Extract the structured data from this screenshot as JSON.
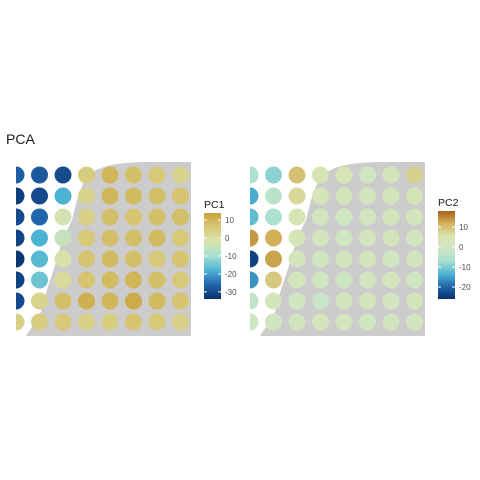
{
  "title": "PCA",
  "chart_data": [
    {
      "type": "heatmap",
      "legend_title": "PC1",
      "legend_ticks": [
        10,
        0,
        -10,
        -20,
        -30
      ],
      "value_range": [
        -34,
        14
      ],
      "colormap": [
        "#08306b",
        "#2166ac",
        "#4db3d2",
        "#a6dfd3",
        "#d9e4b0",
        "#d8c978",
        "#c9a13a"
      ],
      "tissue_background": "#cccccc",
      "rows": [
        [
          -27,
          -28,
          -30,
          5,
          10,
          8,
          6,
          3,
          4
        ],
        [
          -32,
          -30,
          -18,
          3,
          10,
          9,
          8,
          7,
          6
        ],
        [
          -30,
          -26,
          -3,
          4,
          8,
          7,
          8,
          8,
          7
        ],
        [
          -31,
          -18,
          -5,
          6,
          8,
          8,
          9,
          6,
          7
        ],
        [
          -33,
          -17,
          -1,
          7,
          9,
          8,
          6,
          7,
          9
        ],
        [
          -31,
          -15,
          1,
          7,
          9,
          10,
          8,
          6,
          7
        ],
        [
          -30,
          3,
          8,
          11,
          10,
          12,
          9,
          7,
          6
        ],
        [
          4,
          5,
          6,
          4,
          5,
          7,
          6,
          4,
          5
        ]
      ]
    },
    {
      "type": "heatmap",
      "legend_title": "PC2",
      "legend_ticks": [
        10,
        0,
        -10,
        -20
      ],
      "value_range": [
        -26,
        18
      ],
      "colormap": [
        "#08306b",
        "#2166ac",
        "#4db3d2",
        "#a6dfd3",
        "#cfe6c4",
        "#d9e4b0",
        "#d4b45a",
        "#a6611a"
      ],
      "tissue_background": "#cccccc",
      "rows": [
        [
          -6,
          -9,
          10,
          4,
          3,
          0,
          2,
          8,
          6
        ],
        [
          -14,
          -4,
          7,
          3,
          2,
          1,
          2,
          3,
          1
        ],
        [
          -12,
          -6,
          4,
          1,
          0,
          1,
          2,
          1,
          0
        ],
        [
          14,
          12,
          3,
          1,
          0,
          1,
          2,
          1,
          1
        ],
        [
          -24,
          13,
          2,
          0,
          1,
          2,
          0,
          1,
          1
        ],
        [
          -16,
          9,
          1,
          0,
          -1,
          1,
          2,
          0,
          1
        ],
        [
          -3,
          2,
          0,
          -2,
          1,
          2,
          1,
          2,
          1
        ],
        [
          -1,
          0,
          1,
          2,
          1,
          0,
          1,
          1,
          0
        ]
      ]
    }
  ]
}
